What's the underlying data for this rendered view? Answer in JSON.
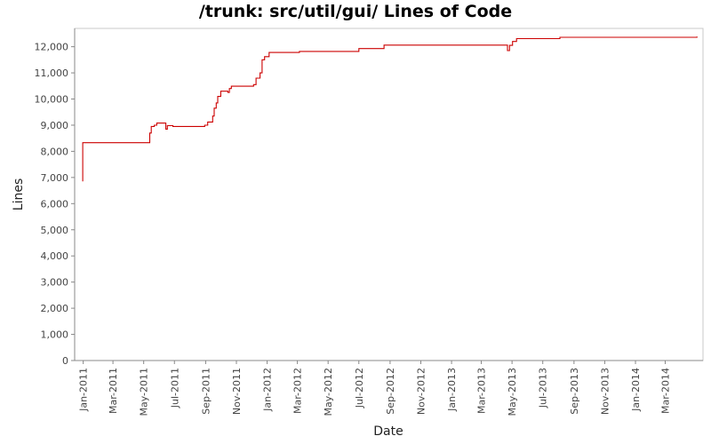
{
  "chart_data": {
    "type": "line",
    "title": "/trunk: src/util/gui/ Lines of Code",
    "xlabel": "Date",
    "ylabel": "Lines",
    "ylim": [
      0,
      12700
    ],
    "xlim": [
      "2010-12-15",
      "2014-05-15"
    ],
    "y_ticks": [
      0,
      1000,
      2000,
      3000,
      4000,
      5000,
      6000,
      7000,
      8000,
      9000,
      10000,
      11000,
      12000
    ],
    "y_tick_labels": [
      "0",
      "1,000",
      "2,000",
      "3,000",
      "4,000",
      "5,000",
      "6,000",
      "7,000",
      "8,000",
      "9,000",
      "10,000",
      "11,000",
      "12,000"
    ],
    "x_ticks": [
      "2011-01-01",
      "2011-03-01",
      "2011-05-01",
      "2011-07-01",
      "2011-09-01",
      "2011-11-01",
      "2012-01-01",
      "2012-03-01",
      "2012-05-01",
      "2012-07-01",
      "2012-09-01",
      "2012-11-01",
      "2013-01-01",
      "2013-03-01",
      "2013-05-01",
      "2013-07-01",
      "2013-09-01",
      "2013-11-01",
      "2014-01-01",
      "2014-03-01"
    ],
    "x_tick_labels": [
      "Jan-2011",
      "Mar-2011",
      "May-2011",
      "Jul-2011",
      "Sep-2011",
      "Nov-2011",
      "Jan-2012",
      "Mar-2012",
      "May-2012",
      "Jul-2012",
      "Sep-2012",
      "Nov-2012",
      "Jan-2013",
      "Mar-2013",
      "May-2013",
      "Jul-2013",
      "Sep-2013",
      "Nov-2013",
      "Jan-2014",
      "Mar-2014"
    ],
    "grid": false,
    "line_color": "#cc0000",
    "series": [
      {
        "step": true,
        "points": [
          [
            "2010-12-31",
            6850
          ],
          [
            "2010-12-31",
            8330
          ],
          [
            "2011-05-10",
            8330
          ],
          [
            "2011-05-13",
            8700
          ],
          [
            "2011-05-16",
            8950
          ],
          [
            "2011-05-22",
            9000
          ],
          [
            "2011-05-27",
            9080
          ],
          [
            "2011-06-14",
            8850
          ],
          [
            "2011-06-17",
            8980
          ],
          [
            "2011-06-28",
            8950
          ],
          [
            "2011-08-30",
            9000
          ],
          [
            "2011-09-05",
            9120
          ],
          [
            "2011-09-15",
            9350
          ],
          [
            "2011-09-18",
            9650
          ],
          [
            "2011-09-22",
            9850
          ],
          [
            "2011-09-25",
            10100
          ],
          [
            "2011-10-01",
            10300
          ],
          [
            "2011-10-15",
            10250
          ],
          [
            "2011-10-18",
            10400
          ],
          [
            "2011-10-22",
            10490
          ],
          [
            "2011-12-05",
            10550
          ],
          [
            "2011-12-10",
            10800
          ],
          [
            "2011-12-18",
            11000
          ],
          [
            "2011-12-22",
            11500
          ],
          [
            "2011-12-27",
            11620
          ],
          [
            "2012-01-05",
            11780
          ],
          [
            "2012-03-05",
            11820
          ],
          [
            "2012-07-01",
            11930
          ],
          [
            "2012-08-20",
            12060
          ],
          [
            "2013-04-22",
            11850
          ],
          [
            "2013-04-26",
            12050
          ],
          [
            "2013-05-02",
            12200
          ],
          [
            "2013-05-10",
            12310
          ],
          [
            "2013-08-04",
            12360
          ],
          [
            "2014-05-03",
            12390
          ]
        ]
      }
    ]
  }
}
